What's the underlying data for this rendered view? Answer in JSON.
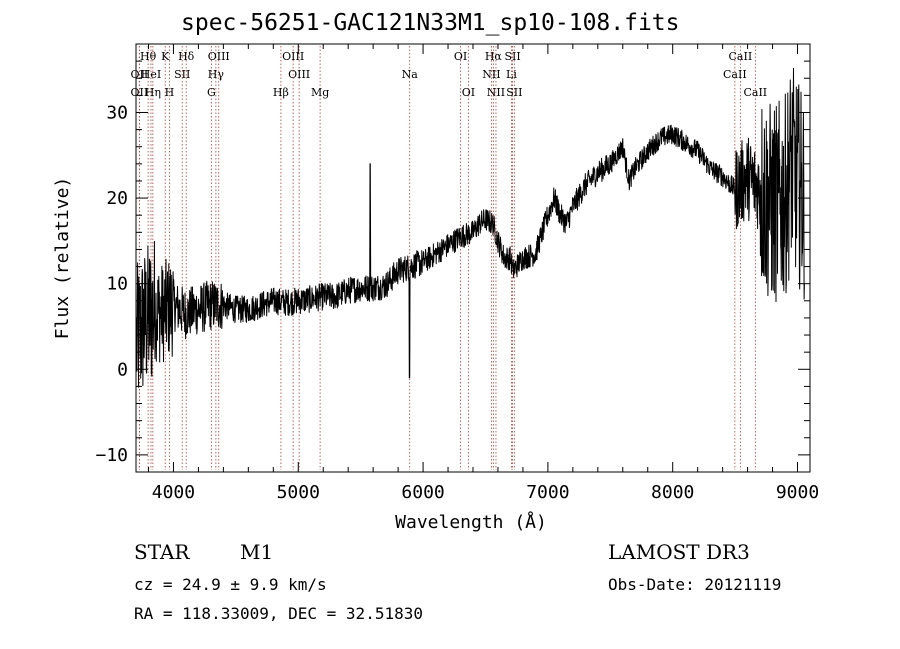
{
  "chart_data": {
    "type": "line",
    "title": "spec-56251-GAC121N33M1_sp10-108.fits",
    "xlabel": "Wavelength (Å)",
    "ylabel": "Flux (relative)",
    "xlim": [
      3700,
      9100
    ],
    "ylim": [
      -12,
      38
    ],
    "xticks": [
      4000,
      5000,
      6000,
      7000,
      8000,
      9000
    ],
    "yticks": [
      -10,
      0,
      10,
      20,
      30
    ],
    "series": [
      {
        "name": "flux",
        "x": [
          3700,
          3750,
          3800,
          3850,
          3900,
          3950,
          4000,
          4100,
          4200,
          4300,
          4400,
          4500,
          4600,
          4700,
          4800,
          4900,
          5000,
          5100,
          5200,
          5300,
          5400,
          5500,
          5600,
          5700,
          5800,
          5900,
          6000,
          6100,
          6200,
          6300,
          6400,
          6450,
          6500,
          6560,
          6600,
          6650,
          6700,
          6720,
          6800,
          6900,
          7000,
          7050,
          7100,
          7150,
          7200,
          7300,
          7400,
          7500,
          7600,
          7650,
          7700,
          7800,
          7900,
          8000,
          8100,
          8200,
          8300,
          8400,
          8500,
          8600,
          8700,
          8800,
          8900,
          8950,
          9000,
          9050
        ],
        "y": [
          3,
          5,
          6,
          7,
          6.5,
          7,
          7.5,
          6.5,
          7,
          7.5,
          7.5,
          7,
          7,
          7.5,
          8,
          7.8,
          8,
          8.2,
          8.5,
          8.5,
          9.2,
          9.5,
          9.5,
          9.8,
          11.5,
          12,
          12.5,
          13.5,
          14.5,
          15.5,
          16,
          17,
          17.5,
          17,
          15,
          13,
          13,
          11.5,
          13,
          13.5,
          18,
          20,
          18,
          17,
          19,
          21.5,
          23,
          24,
          26,
          22,
          23.5,
          25.5,
          27,
          27.5,
          26.5,
          25.5,
          23.5,
          22.5,
          21,
          22.5,
          21,
          19,
          20,
          24,
          22,
          20
        ]
      }
    ],
    "spectral_lines": [
      {
        "label": "OII",
        "wavelength": 3727,
        "row": 2
      },
      {
        "label": "OII",
        "wavelength": 3727,
        "row": 3
      },
      {
        "label": "Hθ",
        "wavelength": 3797,
        "row": 1
      },
      {
        "label": "HeI",
        "wavelength": 3820,
        "row": 2
      },
      {
        "label": "Hη",
        "wavelength": 3835,
        "row": 3
      },
      {
        "label": "K",
        "wavelength": 3934,
        "row": 1
      },
      {
        "label": "SII",
        "wavelength": 4070,
        "row": 2
      },
      {
        "label": "H",
        "wavelength": 3968,
        "row": 3
      },
      {
        "label": "Hδ",
        "wavelength": 4102,
        "row": 1
      },
      {
        "label": "OIII",
        "wavelength": 4363,
        "row": 1
      },
      {
        "label": "Hγ",
        "wavelength": 4340,
        "row": 2
      },
      {
        "label": "G",
        "wavelength": 4304,
        "row": 3
      },
      {
        "label": "OIII",
        "wavelength": 4959,
        "row": 1
      },
      {
        "label": "OIII",
        "wavelength": 5007,
        "row": 2
      },
      {
        "label": "Hβ",
        "wavelength": 4861,
        "row": 3
      },
      {
        "label": "Mg",
        "wavelength": 5175,
        "row": 3
      },
      {
        "label": "Na",
        "wavelength": 5893,
        "row": 2
      },
      {
        "label": "OI",
        "wavelength": 6300,
        "row": 1
      },
      {
        "label": "OI",
        "wavelength": 6363,
        "row": 3
      },
      {
        "label": "Hα",
        "wavelength": 6563,
        "row": 1
      },
      {
        "label": "NII",
        "wavelength": 6548,
        "row": 2
      },
      {
        "label": "NII",
        "wavelength": 6584,
        "row": 3
      },
      {
        "label": "SII",
        "wavelength": 6717,
        "row": 1
      },
      {
        "label": "Li",
        "wavelength": 6708,
        "row": 2
      },
      {
        "label": "SII",
        "wavelength": 6731,
        "row": 3
      },
      {
        "label": "CaII",
        "wavelength": 8542,
        "row": 1
      },
      {
        "label": "CaII",
        "wavelength": 8498,
        "row": 2
      },
      {
        "label": "CaII",
        "wavelength": 8662,
        "row": 3
      }
    ]
  },
  "info": {
    "object_class": "STAR",
    "subclass": "M1",
    "survey": "LAMOST DR3",
    "cz": "cz = 24.9 ± 9.9 km/s",
    "obs_date": "Obs-Date: 20121119",
    "coords": "RA = 118.33009, DEC =  32.51830"
  },
  "colors": {
    "line": "#000000",
    "marker": "#c0392b",
    "background": "#ffffff"
  }
}
